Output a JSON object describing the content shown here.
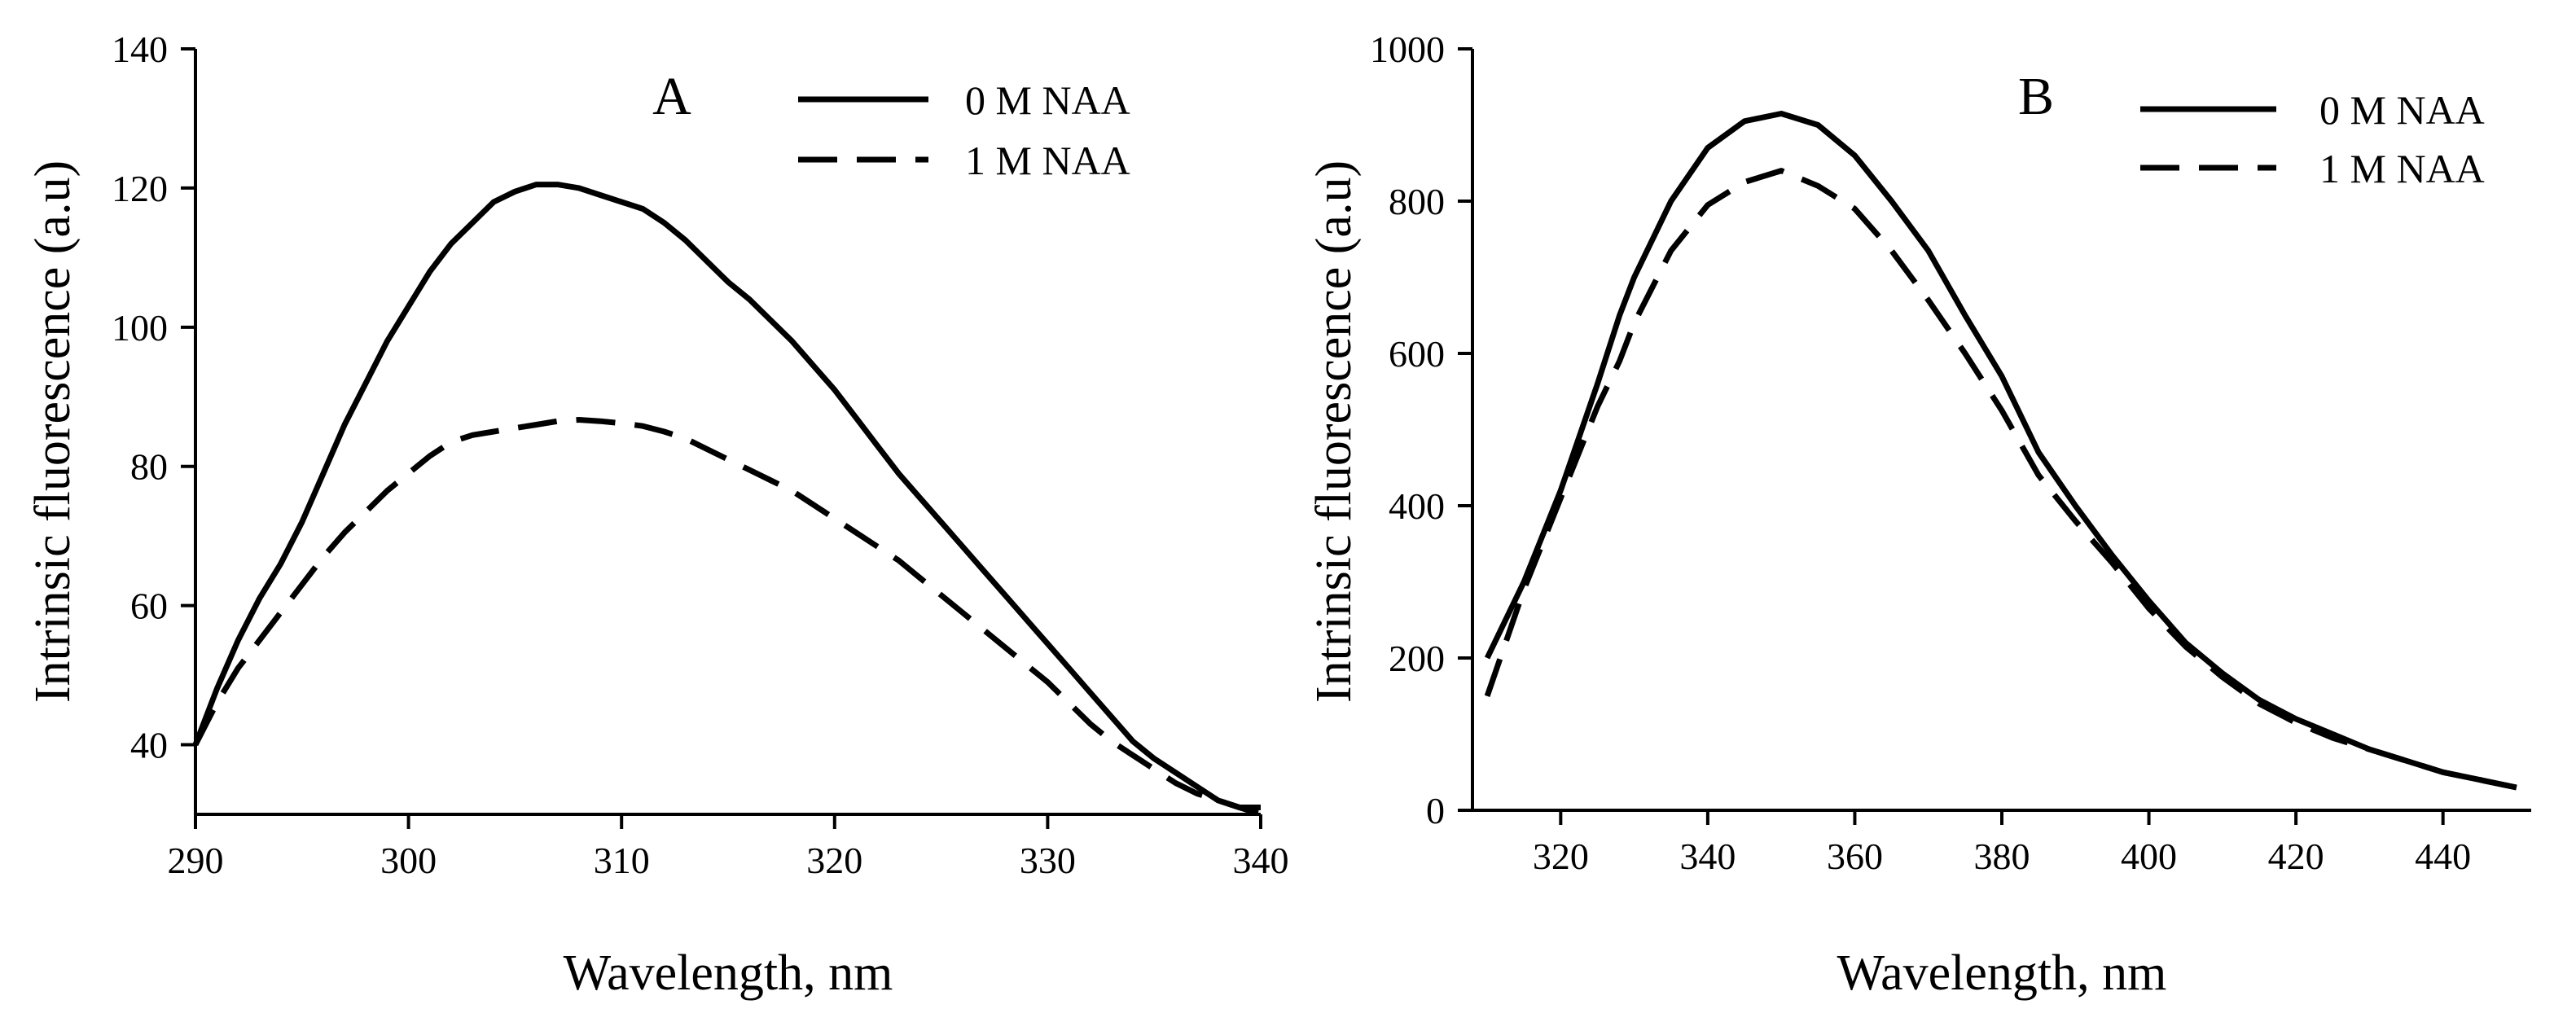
{
  "chart_data": [
    {
      "type": "line",
      "panel_label": "A",
      "xlabel": "Wavelength, nm",
      "ylabel": "Intrinsic fluorescence  (a.u)",
      "xlim": [
        290,
        340
      ],
      "ylim": [
        30,
        140
      ],
      "xticks": [
        290,
        300,
        310,
        320,
        330,
        340
      ],
      "yticks": [
        40,
        60,
        80,
        100,
        120,
        140
      ],
      "legend_position": "top-right",
      "series": [
        {
          "name": "0 M NAA",
          "style": "solid",
          "x": [
            290,
            291,
            292,
            293,
            294,
            295,
            296,
            297,
            298,
            299,
            300,
            301,
            302,
            303,
            304,
            305,
            306,
            307,
            308,
            309,
            310,
            311,
            312,
            313,
            314,
            315,
            316,
            317,
            318,
            319,
            320,
            321,
            322,
            323,
            324,
            325,
            326,
            327,
            328,
            329,
            330,
            331,
            332,
            333,
            334,
            335,
            336,
            337,
            338,
            339,
            340
          ],
          "y": [
            40,
            48,
            55,
            61,
            66,
            72,
            79,
            86,
            92,
            98,
            103,
            108,
            112,
            115,
            118,
            119.5,
            120.5,
            120.5,
            120,
            119,
            118,
            117,
            115,
            112.5,
            109.5,
            106.5,
            104,
            101,
            98,
            94.5,
            91,
            87,
            83,
            79,
            75.5,
            72,
            68.5,
            65,
            61.5,
            58,
            54.5,
            51,
            47.5,
            44,
            40.5,
            38,
            36,
            34,
            32,
            31,
            31
          ]
        },
        {
          "name": "1 M NAA",
          "style": "dashed",
          "x": [
            290,
            291,
            292,
            293,
            294,
            295,
            296,
            297,
            298,
            299,
            300,
            301,
            302,
            303,
            304,
            305,
            306,
            307,
            308,
            309,
            310,
            311,
            312,
            313,
            314,
            315,
            316,
            317,
            318,
            319,
            320,
            321,
            322,
            323,
            324,
            325,
            326,
            327,
            328,
            329,
            330,
            331,
            332,
            333,
            334,
            335,
            336,
            337,
            338,
            339,
            340
          ],
          "y": [
            40,
            46,
            51,
            55,
            59,
            63,
            67,
            70.5,
            73.5,
            76.5,
            79,
            81.5,
            83.5,
            84.5,
            85,
            85.5,
            86,
            86.5,
            86.7,
            86.5,
            86.2,
            85.8,
            85,
            84,
            82.5,
            81,
            79.5,
            78,
            76.5,
            74.5,
            72.5,
            70.5,
            68.5,
            66.5,
            64,
            61.5,
            59,
            56.5,
            54,
            51.5,
            49,
            46,
            43,
            40.5,
            38.5,
            36.5,
            34.5,
            33,
            32,
            31,
            30
          ]
        }
      ]
    },
    {
      "type": "line",
      "panel_label": "B",
      "xlabel": "Wavelength, nm",
      "ylabel": "Intrinsic fluorescence (a.u)",
      "xlim": [
        308,
        452
      ],
      "ylim": [
        0,
        1000
      ],
      "xticks": [
        320,
        340,
        360,
        380,
        400,
        420,
        440
      ],
      "yticks": [
        0,
        200,
        400,
        600,
        800,
        1000
      ],
      "legend_position": "top-right",
      "series": [
        {
          "name": "0 M NAA",
          "style": "solid",
          "x": [
            310,
            315,
            320,
            325,
            328,
            330,
            335,
            340,
            345,
            350,
            355,
            360,
            365,
            370,
            375,
            380,
            385,
            390,
            395,
            400,
            405,
            410,
            415,
            420,
            425,
            430,
            435,
            440,
            445,
            450
          ],
          "y": [
            200,
            300,
            420,
            560,
            650,
            700,
            800,
            870,
            905,
            915,
            900,
            860,
            800,
            735,
            650,
            570,
            470,
            400,
            335,
            275,
            220,
            180,
            145,
            120,
            100,
            80,
            65,
            50,
            40,
            30
          ]
        },
        {
          "name": "1 M NAA",
          "style": "dashed",
          "x": [
            310,
            315,
            320,
            325,
            328,
            330,
            335,
            340,
            345,
            350,
            355,
            360,
            365,
            370,
            375,
            380,
            385,
            390,
            395,
            400,
            405,
            410,
            415,
            420,
            425,
            430,
            435,
            440,
            445,
            450
          ],
          "y": [
            150,
            290,
            410,
            530,
            590,
            640,
            735,
            795,
            825,
            840,
            820,
            790,
            735,
            670,
            600,
            525,
            440,
            380,
            325,
            265,
            215,
            175,
            140,
            115,
            95,
            80,
            65,
            50,
            40,
            30
          ]
        }
      ]
    }
  ]
}
